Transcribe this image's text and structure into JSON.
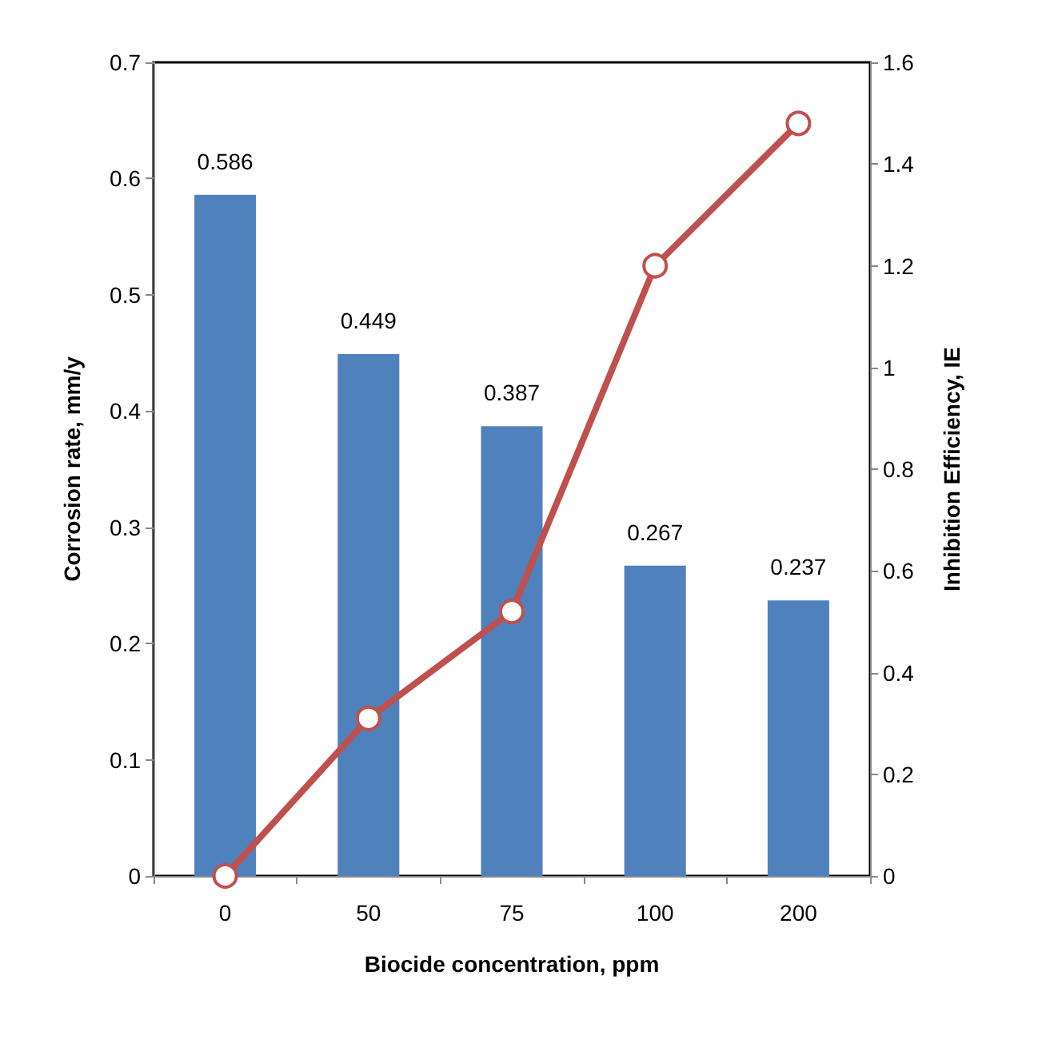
{
  "chart_data": {
    "type": "bar",
    "xlabel": "Biocide concentration, ppm",
    "ylabel": "Corrosion rate, mm/y",
    "y2label": "Inhibition Efficiency, IE",
    "categories": [
      "0",
      "50",
      "75",
      "100",
      "200"
    ],
    "series": [
      {
        "color": "#4f81bd",
        "values": [
          0.586,
          0.449,
          0.387,
          0.267,
          0.237
        ],
        "value_labels": [
          "0.586",
          "0.449",
          "0.387",
          "0.267",
          "0.237"
        ]
      },
      {
        "type": "line",
        "axis": "y2",
        "color": "#c0504d",
        "marker": "circle",
        "values": [
          0,
          0.31,
          0.52,
          1.2,
          1.48
        ]
      }
    ],
    "ylim": [
      0,
      0.7
    ],
    "yticks": [
      0,
      0.1,
      0.2,
      0.3,
      0.4,
      0.5,
      0.6,
      0.7
    ],
    "y2lim": [
      0,
      1.6
    ],
    "y2ticks": [
      0,
      0.2,
      0.4,
      0.6,
      0.8,
      1,
      1.2,
      1.4,
      1.6
    ],
    "grid": false
  }
}
